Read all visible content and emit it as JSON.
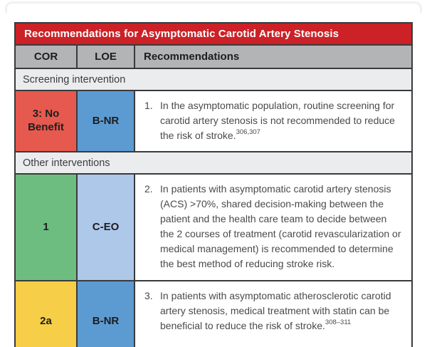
{
  "table": {
    "title": "Recommendations for Asymptomatic Carotid Artery Stenosis",
    "header": {
      "cor": "COR",
      "loe": "LOE",
      "rec": "Recommendations"
    },
    "sections": {
      "screening_label": "Screening intervention",
      "other_label": "Other interventions"
    },
    "rows": [
      {
        "cor": "3: No Benefit",
        "loe": "B-NR",
        "num": "1.",
        "text": "In the asymptomatic population, routine screening for carotid artery stenosis is not recommended to reduce the risk of stroke.",
        "refs": "306,307",
        "cor_bg": "#E6594E",
        "loe_bg": "#5C9BD2"
      },
      {
        "cor": "1",
        "loe": "C-EO",
        "num": "2.",
        "text": "In patients with asymptomatic carotid artery stenosis (ACS) >70%, shared decision-making between the patient and the health care team to decide between the 2 courses of treatment (carotid revascularization or medical management) is recommended to determine the best method of reducing stroke risk.",
        "refs": "",
        "cor_bg": "#6EBD80",
        "loe_bg": "#AEC8E9"
      },
      {
        "cor": "2a",
        "loe": "B-NR",
        "num": "3.",
        "text": "In patients with asymptomatic atherosclerotic carotid artery stenosis, medical treatment with statin can be beneficial to reduce the risk of stroke.",
        "refs": "308–311",
        "cor_bg": "#F6CE47",
        "loe_bg": "#5C9BD2"
      }
    ],
    "colors": {
      "title_bg": "#CB2127",
      "title_text": "#FFFFFF",
      "header_bg": "#B2B4B6",
      "section_bg": "#EBECED",
      "border": "#3A3A3C"
    }
  }
}
